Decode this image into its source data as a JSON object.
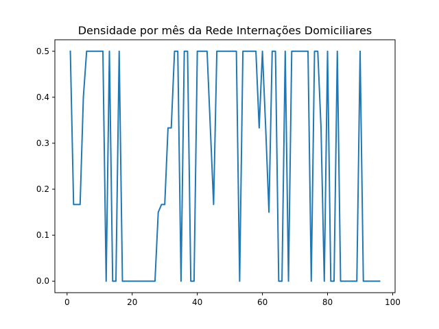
{
  "chart_data": {
    "type": "line",
    "title": "Densidade por mês da Rede Internações Domiciliares",
    "xlabel": "",
    "ylabel": "",
    "xlim": [
      -3.75,
      100.75
    ],
    "ylim": [
      -0.025,
      0.525
    ],
    "xticks": [
      0,
      20,
      40,
      60,
      80,
      100
    ],
    "xtick_labels": [
      "0",
      "20",
      "40",
      "60",
      "80",
      "100"
    ],
    "yticks": [
      0.0,
      0.1,
      0.2,
      0.3,
      0.4,
      0.5
    ],
    "ytick_labels": [
      "0.0",
      "0.1",
      "0.2",
      "0.3",
      "0.4",
      "0.5"
    ],
    "grid": false,
    "series": [
      {
        "color": "#1f77b4",
        "x": [
          1,
          2,
          3,
          4,
          5,
          6,
          7,
          8,
          9,
          10,
          11,
          12,
          13,
          14,
          15,
          16,
          17,
          18,
          19,
          20,
          21,
          22,
          23,
          24,
          25,
          26,
          27,
          28,
          29,
          30,
          31,
          32,
          33,
          34,
          35,
          36,
          37,
          38,
          39,
          40,
          41,
          42,
          43,
          44,
          45,
          46,
          47,
          48,
          49,
          50,
          51,
          52,
          53,
          54,
          55,
          56,
          57,
          58,
          59,
          60,
          61,
          62,
          63,
          64,
          65,
          66,
          67,
          68,
          69,
          70,
          71,
          72,
          73,
          74,
          75,
          76,
          77,
          78,
          79,
          80,
          81,
          82,
          83,
          84,
          85,
          86,
          87,
          88,
          89,
          90,
          91,
          92,
          93,
          94,
          95,
          96
        ],
        "y": [
          0.5,
          0.1667,
          0.1667,
          0.1667,
          0.4,
          0.5,
          0.5,
          0.5,
          0.5,
          0.5,
          0.5,
          0.0,
          0.5,
          0.0,
          0.0,
          0.5,
          0.0,
          0.0,
          0.0,
          0.0,
          0.0,
          0.0,
          0.0,
          0.0,
          0.0,
          0.0,
          0.0,
          0.15,
          0.1667,
          0.1667,
          0.3333,
          0.3333,
          0.5,
          0.5,
          0.0,
          0.5,
          0.5,
          0.0,
          0.0,
          0.5,
          0.5,
          0.5,
          0.5,
          0.3333,
          0.1667,
          0.5,
          0.5,
          0.5,
          0.5,
          0.5,
          0.5,
          0.5,
          0.0,
          0.5,
          0.5,
          0.5,
          0.5,
          0.5,
          0.3333,
          0.5,
          0.3333,
          0.15,
          0.5,
          0.5,
          0.0,
          0.0,
          0.5,
          0.0,
          0.5,
          0.5,
          0.5,
          0.5,
          0.5,
          0.5,
          0.0,
          0.5,
          0.5,
          0.3333,
          0.0,
          0.5,
          0.0,
          0.0,
          0.5,
          0.0,
          0.0,
          0.0,
          0.0,
          0.0,
          0.0,
          0.5,
          0.0,
          0.0,
          0.0,
          0.0,
          0.0,
          0.0
        ]
      }
    ]
  }
}
